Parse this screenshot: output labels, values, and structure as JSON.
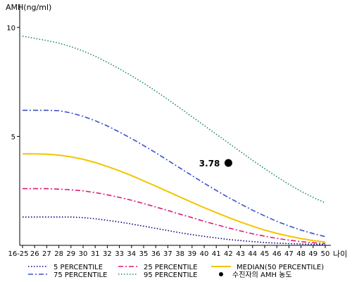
{
  "chart_data": {
    "type": "line",
    "ylabel": "AMH(ng/ml)",
    "xlabel": "나이",
    "categories": [
      "16-25",
      "26",
      "27",
      "28",
      "29",
      "30",
      "31",
      "32",
      "33",
      "34",
      "35",
      "36",
      "37",
      "38",
      "39",
      "40",
      "41",
      "42",
      "43",
      "44",
      "45",
      "46",
      "47",
      "48",
      "49",
      "50"
    ],
    "yticks": [
      5,
      10
    ],
    "ylim": [
      0,
      11
    ],
    "grid": false,
    "series": [
      {
        "name": "5 PERCENTILE",
        "color": "#000080",
        "dash": "dotted",
        "values": [
          1.3,
          1.3,
          1.3,
          1.3,
          1.3,
          1.27,
          1.22,
          1.15,
          1.07,
          0.98,
          0.88,
          0.78,
          0.68,
          0.58,
          0.49,
          0.41,
          0.34,
          0.27,
          0.22,
          0.17,
          0.13,
          0.1,
          0.08,
          0.06,
          0.05,
          0.04
        ]
      },
      {
        "name": "25 PERCENTILE",
        "color": "#e0197a",
        "dash": "dashdot",
        "values": [
          2.6,
          2.6,
          2.6,
          2.58,
          2.55,
          2.5,
          2.42,
          2.32,
          2.2,
          2.07,
          1.92,
          1.76,
          1.6,
          1.43,
          1.27,
          1.1,
          0.95,
          0.8,
          0.66,
          0.53,
          0.42,
          0.32,
          0.24,
          0.17,
          0.12,
          0.08
        ]
      },
      {
        "name": "MEDIAN(50 PERCENTILE)",
        "color": "#f2c500",
        "dash": "solid",
        "values": [
          4.2,
          4.2,
          4.18,
          4.14,
          4.06,
          3.95,
          3.8,
          3.62,
          3.42,
          3.2,
          2.96,
          2.72,
          2.47,
          2.22,
          1.97,
          1.73,
          1.5,
          1.28,
          1.07,
          0.88,
          0.7,
          0.55,
          0.42,
          0.31,
          0.22,
          0.15
        ]
      },
      {
        "name": "75 PERCENTILE",
        "color": "#3a4fc8",
        "dash": "dashdot",
        "values": [
          6.2,
          6.2,
          6.2,
          6.18,
          6.08,
          5.92,
          5.72,
          5.48,
          5.2,
          4.9,
          4.58,
          4.25,
          3.9,
          3.55,
          3.2,
          2.85,
          2.52,
          2.2,
          1.9,
          1.61,
          1.35,
          1.1,
          0.89,
          0.7,
          0.54,
          0.4
        ]
      },
      {
        "name": "95 PERCENTILE",
        "color": "#1e8a5a",
        "dash": "dotted",
        "values": [
          9.6,
          9.5,
          9.4,
          9.28,
          9.12,
          8.92,
          8.68,
          8.4,
          8.1,
          7.78,
          7.44,
          7.08,
          6.7,
          6.3,
          5.9,
          5.5,
          5.1,
          4.7,
          4.3,
          3.9,
          3.52,
          3.15,
          2.8,
          2.48,
          2.2,
          1.95
        ]
      }
    ],
    "point": {
      "name": "수진자의 AMH 농도",
      "x": "42",
      "value": 3.78,
      "label": "3.78",
      "color": "#000000"
    },
    "legend": {
      "position": "bottom"
    }
  }
}
